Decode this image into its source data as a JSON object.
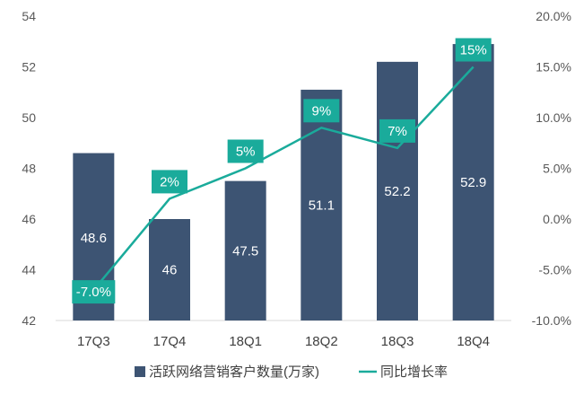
{
  "chart_data": {
    "type": "bar",
    "categories": [
      "17Q3",
      "17Q4",
      "18Q1",
      "18Q2",
      "18Q3",
      "18Q4"
    ],
    "series": [
      {
        "name": "活跃网络营销客户数量(万家)",
        "type": "bar",
        "axis": "left",
        "values": [
          48.6,
          46,
          47.5,
          51.1,
          52.2,
          52.9
        ],
        "labels": [
          "48.6",
          "46",
          "47.5",
          "51.1",
          "52.2",
          "52.9"
        ],
        "color": "#3d5473"
      },
      {
        "name": "同比增长率",
        "type": "line",
        "axis": "right",
        "values": [
          -7.0,
          2,
          5,
          9,
          7,
          15
        ],
        "labels": [
          "-7.0%",
          "2%",
          "5%",
          "9%",
          "7%",
          "15%"
        ],
        "color": "#1aab9b"
      }
    ],
    "y_left": {
      "range": [
        42,
        54
      ],
      "ticks": [
        42,
        44,
        46,
        48,
        50,
        52,
        54
      ],
      "tick_labels": [
        "42",
        "44",
        "46",
        "48",
        "50",
        "52",
        "54"
      ]
    },
    "y_right": {
      "range": [
        -10,
        20
      ],
      "ticks": [
        -10,
        -5,
        0,
        5,
        10,
        15,
        20
      ],
      "tick_labels": [
        "-10.0%",
        "-5.0%",
        "0.0%",
        "5.0%",
        "10.0%",
        "15.0%",
        "20.0%"
      ]
    },
    "grid": false,
    "legend": "bottom"
  }
}
